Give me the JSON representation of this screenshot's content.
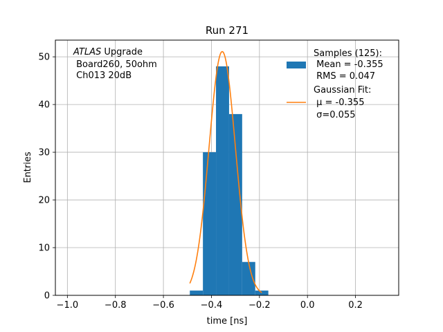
{
  "chart_data": {
    "type": "bar",
    "title": "Run 271",
    "xlabel": "time [ns]",
    "ylabel": "Entries",
    "xlim": [
      -1.05,
      0.38
    ],
    "ylim": [
      0,
      53.5
    ],
    "xticks": [
      -1.0,
      -0.8,
      -0.6,
      -0.4,
      -0.2,
      0.0,
      0.2
    ],
    "xtick_labels": [
      "−1.0",
      "−0.8",
      "−0.6",
      "−0.4",
      "−0.2",
      "0.0",
      "0.2"
    ],
    "yticks": [
      0,
      10,
      20,
      30,
      40,
      50
    ],
    "ytick_labels": [
      "0",
      "10",
      "20",
      "30",
      "40",
      "50"
    ],
    "grid": true,
    "legend_position": "upper right",
    "colors": {
      "histogram": "#1f77b4",
      "fit": "#ff7f0e"
    },
    "annotation": {
      "line1_italic": "ATLAS",
      "line1_rest": " Upgrade",
      "line2": " Board260, 50ohm",
      "line3": " Ch013 20dB"
    },
    "histogram": {
      "name": "Samples (125):",
      "bin_edges": [
        -0.49,
        -0.4355,
        -0.381,
        -0.3265,
        -0.272,
        -0.2175,
        -0.163
      ],
      "counts": [
        1,
        30,
        48,
        38,
        7,
        1
      ],
      "legend_lines": [
        "Samples (125):",
        " Mean = -0.355",
        " RMS = 0.047"
      ]
    },
    "fit": {
      "name": "Gaussian Fit:",
      "amplitude": 51.1,
      "mu": -0.355,
      "sigma": 0.055,
      "x_range": [
        -0.49,
        -0.19
      ],
      "legend_lines": [
        "Gaussian Fit:",
        " μ = -0.355",
        " σ=0.055"
      ]
    }
  }
}
